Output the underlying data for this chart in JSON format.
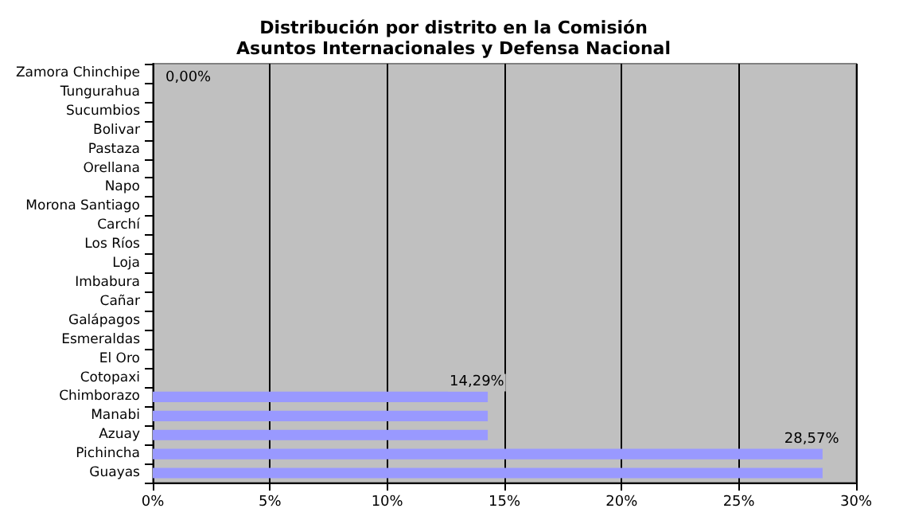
{
  "chart_data": {
    "type": "bar",
    "orientation": "horizontal",
    "title": "Distribución por distrito en la Comisión\nAsuntos Internacionales y Defensa Nacional",
    "categories": [
      "Zamora Chinchipe",
      "Tungurahua",
      "Sucumbios",
      "Bolivar",
      "Pastaza",
      "Orellana",
      "Napo",
      "Morona Santiago",
      "Carchí",
      "Los Ríos",
      "Loja",
      "Imbabura",
      "Cañar",
      "Galápagos",
      "Esmeraldas",
      "El Oro",
      "Cotopaxi",
      "Chimborazo",
      "Manabi",
      "Azuay",
      "Pichincha",
      "Guayas"
    ],
    "values": [
      0,
      0,
      0,
      0,
      0,
      0,
      0,
      0,
      0,
      0,
      0,
      0,
      0,
      0,
      0,
      0,
      0,
      14.29,
      14.29,
      14.29,
      28.57,
      28.57
    ],
    "value_labels": [
      "0,00%",
      null,
      null,
      null,
      null,
      null,
      null,
      null,
      null,
      null,
      null,
      null,
      null,
      null,
      null,
      null,
      null,
      "14,29%",
      null,
      null,
      "28,57%",
      null
    ],
    "color": "#9999ff",
    "xlim": [
      0,
      30
    ],
    "xticks": [
      {
        "value": 0,
        "label": "0%"
      },
      {
        "value": 5,
        "label": "5%"
      },
      {
        "value": 10,
        "label": "10%"
      },
      {
        "value": 15,
        "label": "15%"
      },
      {
        "value": 20,
        "label": "20%"
      },
      {
        "value": 25,
        "label": "25%"
      },
      {
        "value": 30,
        "label": "30%"
      }
    ],
    "grid": "x"
  }
}
